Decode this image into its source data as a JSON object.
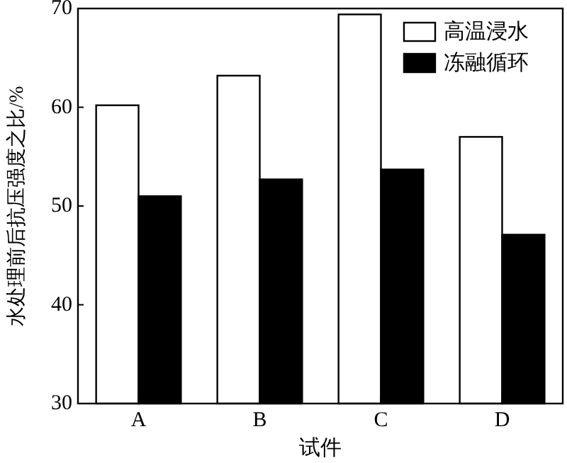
{
  "chart_data": {
    "type": "bar",
    "xlabel": "试件",
    "ylabel": "水处理前后抗压强度之比/%",
    "categories": [
      "A",
      "B",
      "C",
      "D"
    ],
    "series": [
      {
        "name": "高温浸水",
        "color": "#ffffff",
        "values": [
          60.2,
          63.2,
          69.4,
          57.0
        ]
      },
      {
        "name": "冻融循环",
        "color": "#000000",
        "values": [
          51.0,
          52.7,
          53.7,
          47.1
        ]
      }
    ],
    "ylim": [
      30,
      70
    ],
    "yticks": [
      30,
      40,
      50,
      60,
      70
    ],
    "legend": "top right"
  }
}
